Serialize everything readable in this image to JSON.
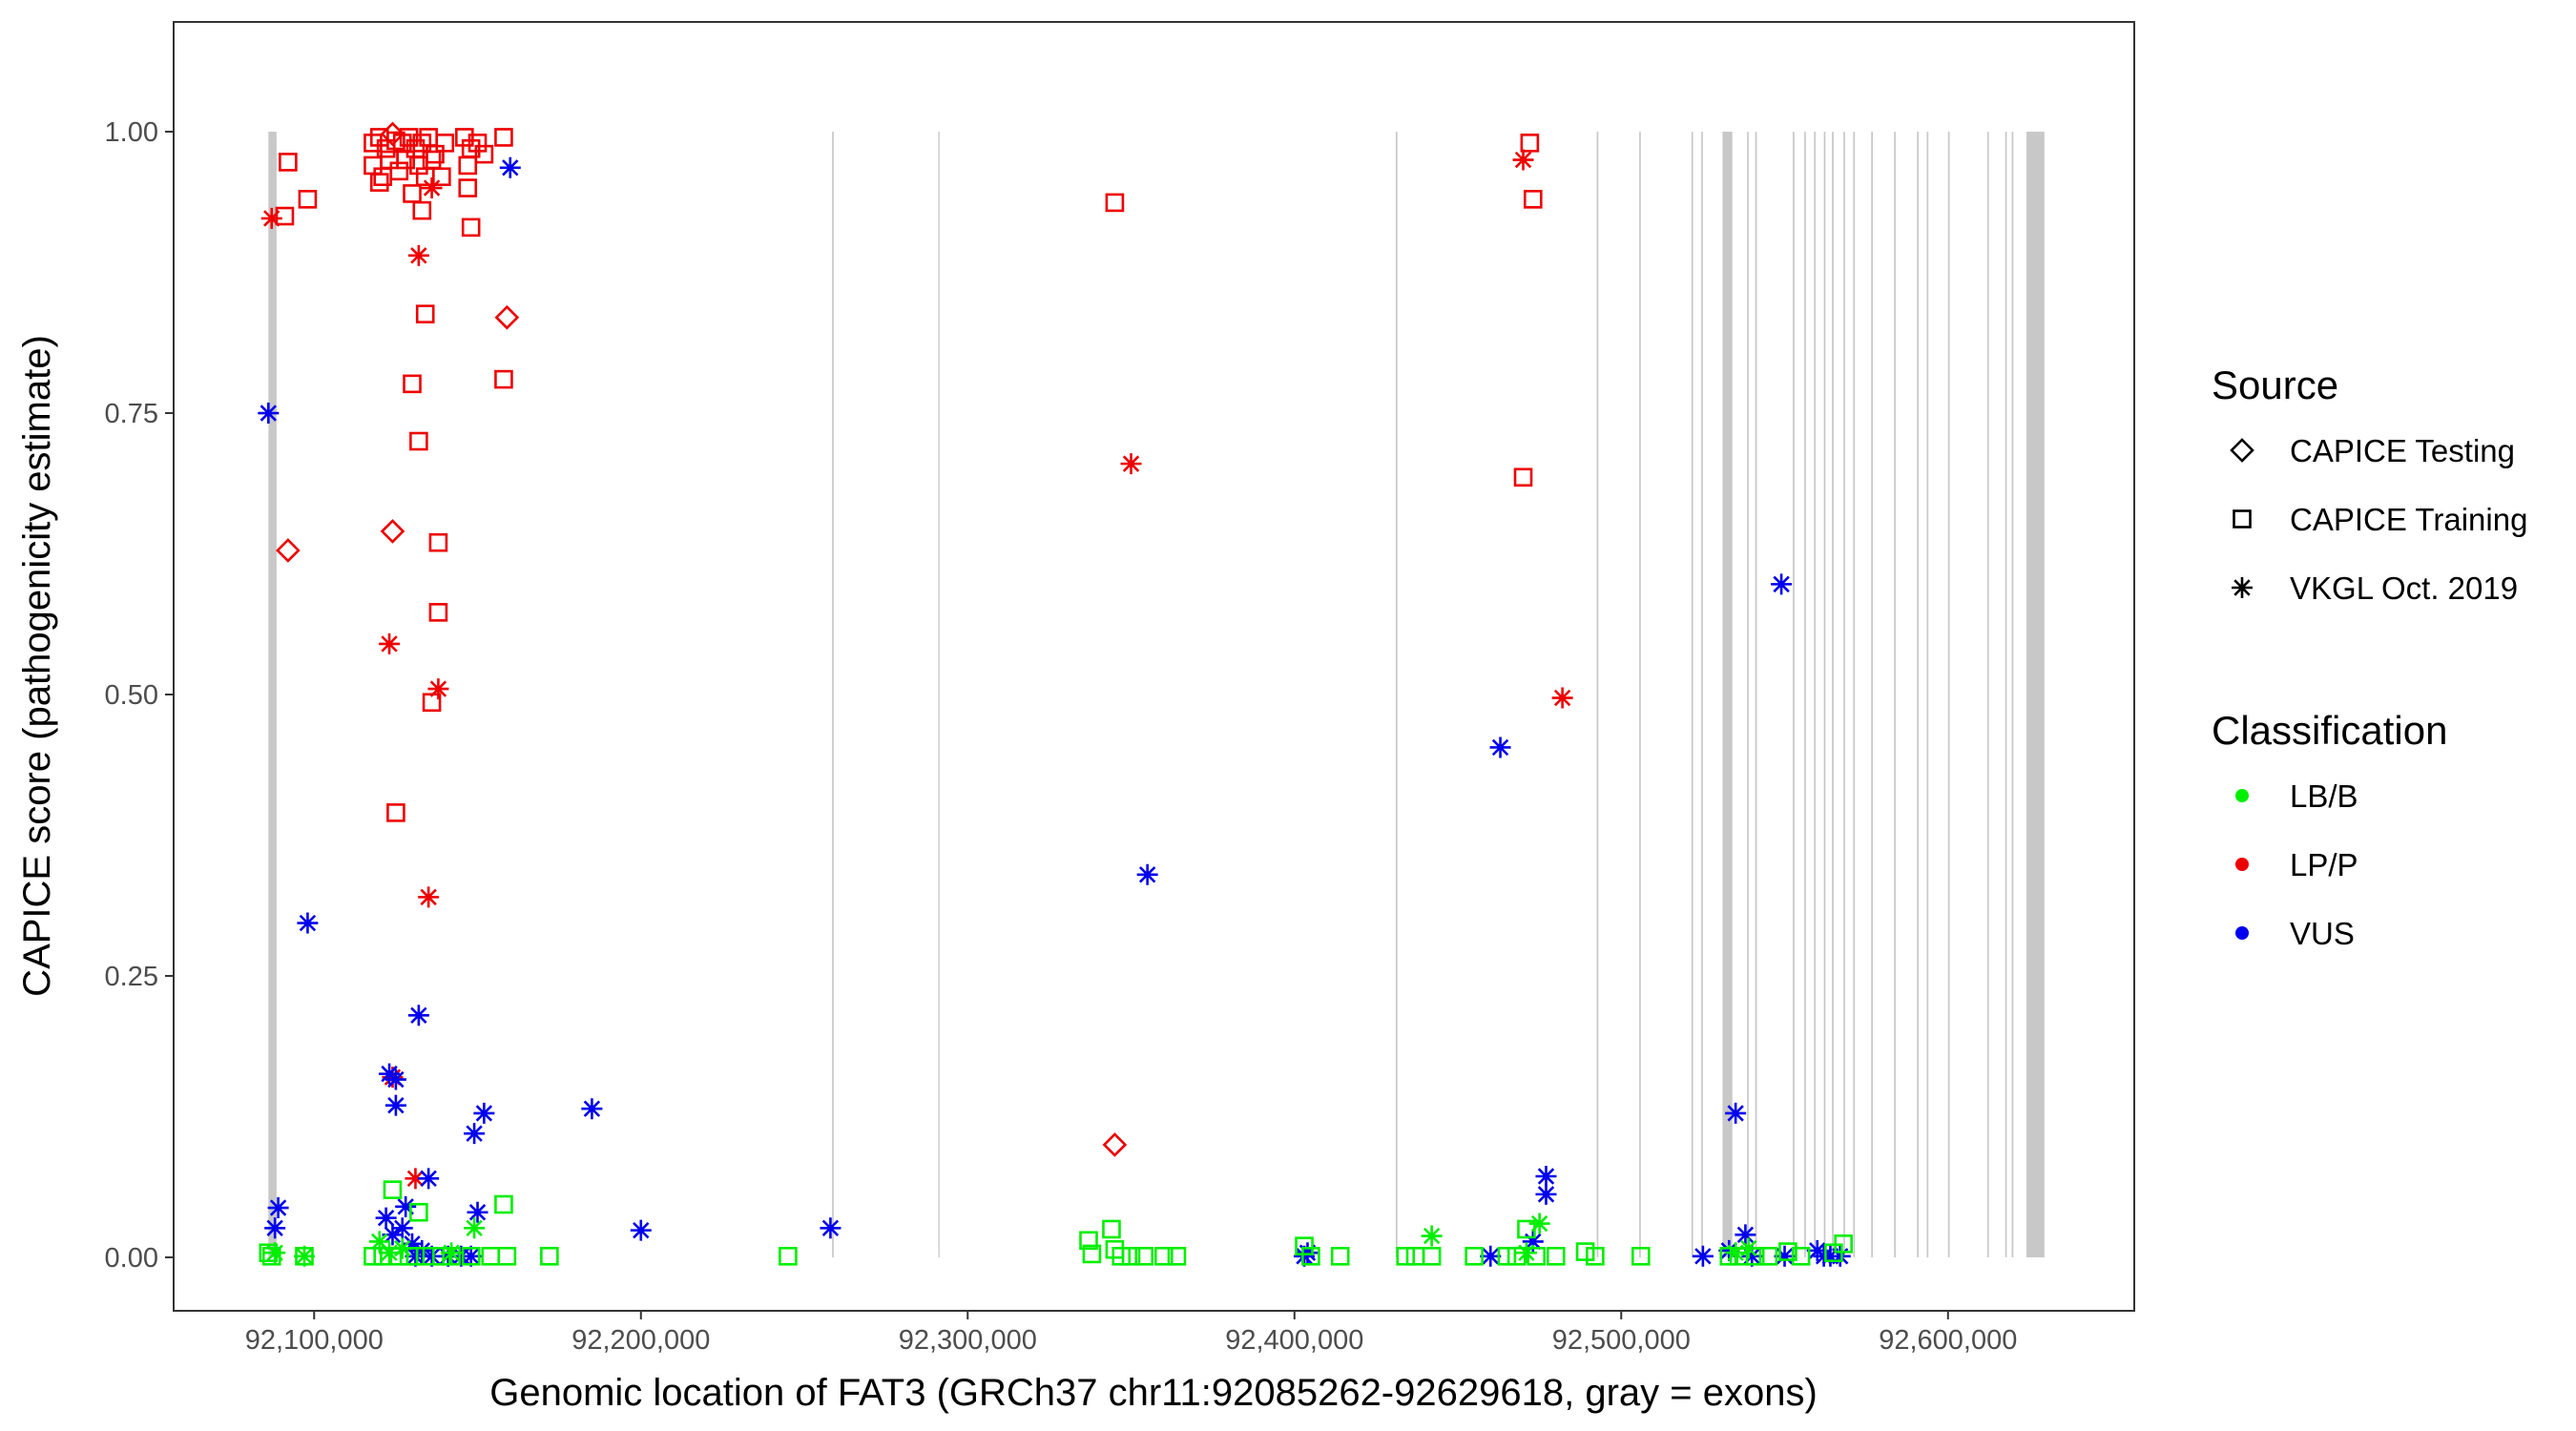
{
  "chart_data": {
    "type": "scatter",
    "title": "",
    "xlabel": "Genomic location of FAT3 (GRCh37 chr11:92085262-92629618, gray = exons)",
    "ylabel": "CAPICE score (pathogenicity estimate)",
    "xlim": [
      92057000,
      92657000
    ],
    "ylim": [
      -0.0475,
      1.0975
    ],
    "x_ticks": [
      92100000,
      92200000,
      92300000,
      92400000,
      92500000,
      92600000
    ],
    "x_tick_labels": [
      "92,100,000",
      "92,200,000",
      "92,300,000",
      "92,400,000",
      "92,500,000",
      "92,600,000"
    ],
    "y_ticks": [
      0,
      0.25,
      0.5,
      0.75,
      1.0
    ],
    "y_tick_labels": [
      "0.00",
      "0.25",
      "0.50",
      "0.75",
      "1.00"
    ],
    "grid": false,
    "exon_color": "#c8c8c8",
    "exons": [
      [
        92086000,
        92088500
      ],
      [
        92258500,
        92259000
      ],
      [
        92291000,
        92291400
      ],
      [
        92431000,
        92431500
      ],
      [
        92492500,
        92493000
      ],
      [
        92505500,
        92506000
      ],
      [
        92521500,
        92522000
      ],
      [
        92524500,
        92525000
      ],
      [
        92531000,
        92534000
      ],
      [
        92538500,
        92539000
      ],
      [
        92541000,
        92541500
      ],
      [
        92552500,
        92553000
      ],
      [
        92556000,
        92556500
      ],
      [
        92559000,
        92559500
      ],
      [
        92562000,
        92562500
      ],
      [
        92564500,
        92565000
      ],
      [
        92568000,
        92568500
      ],
      [
        92571000,
        92571500
      ],
      [
        92576500,
        92577000
      ],
      [
        92583500,
        92584000
      ],
      [
        92590500,
        92591000
      ],
      [
        92593500,
        92594000
      ],
      [
        92600000,
        92600500
      ],
      [
        92612000,
        92612500
      ],
      [
        92617500,
        92618000
      ],
      [
        92619500,
        92620000
      ],
      [
        92624000,
        92629500
      ]
    ],
    "colors": {
      "LB/B": "#00ee00",
      "LP/P": "#ee0000",
      "VUS": "#0000ee"
    },
    "legend": {
      "position": "right",
      "source_title": "Source",
      "source_items": [
        {
          "label": "CAPICE Testing",
          "shape": "diamond"
        },
        {
          "label": "CAPICE Training",
          "shape": "square"
        },
        {
          "label": "VKGL Oct. 2019",
          "shape": "asterisk"
        }
      ],
      "class_title": "Classification",
      "class_items": [
        {
          "label": "LB/B",
          "key": "LB/B"
        },
        {
          "label": "LP/P",
          "key": "LP/P"
        },
        {
          "label": "VUS",
          "key": "VUS"
        }
      ]
    },
    "series": [
      {
        "name": "CAPICE Testing / LP/P",
        "source": "CAPICE Testing",
        "class": "LP/P",
        "points": [
          [
            92124000,
            0.998
          ],
          [
            92159000,
            0.835
          ],
          [
            92092000,
            0.628
          ],
          [
            92124000,
            0.645
          ],
          [
            92345000,
            0.1
          ]
        ]
      },
      {
        "name": "CAPICE Training / LP/P",
        "source": "CAPICE Training",
        "class": "LP/P",
        "points": [
          [
            92118000,
            0.99
          ],
          [
            92120000,
            0.995
          ],
          [
            92122000,
            0.985
          ],
          [
            92125000,
            0.992
          ],
          [
            92127000,
            0.99
          ],
          [
            92129000,
            0.995
          ],
          [
            92131000,
            0.985
          ],
          [
            92133000,
            0.99
          ],
          [
            92135000,
            0.995
          ],
          [
            92137000,
            0.98
          ],
          [
            92140000,
            0.99
          ],
          [
            92146000,
            0.995
          ],
          [
            92148000,
            0.985
          ],
          [
            92150000,
            0.99
          ],
          [
            92158000,
            0.995
          ],
          [
            92118000,
            0.97
          ],
          [
            92121000,
            0.96
          ],
          [
            92123000,
            0.975
          ],
          [
            92126000,
            0.965
          ],
          [
            92128000,
            0.975
          ],
          [
            92132000,
            0.97
          ],
          [
            92134000,
            0.96
          ],
          [
            92136000,
            0.975
          ],
          [
            92139000,
            0.96
          ],
          [
            92147000,
            0.97
          ],
          [
            92152000,
            0.98
          ],
          [
            92130000,
            0.945
          ],
          [
            92147000,
            0.95
          ],
          [
            92120000,
            0.955
          ],
          [
            92092000,
            0.973
          ],
          [
            92091000,
            0.925
          ],
          [
            92098000,
            0.94
          ],
          [
            92133000,
            0.93
          ],
          [
            92148000,
            0.915
          ],
          [
            92134000,
            0.838
          ],
          [
            92158000,
            0.78
          ],
          [
            92130000,
            0.776
          ],
          [
            92132000,
            0.725
          ],
          [
            92138000,
            0.635
          ],
          [
            92138000,
            0.573
          ],
          [
            92136000,
            0.493
          ],
          [
            92125000,
            0.395
          ],
          [
            92345000,
            0.937
          ],
          [
            92472000,
            0.99
          ],
          [
            92473000,
            0.94
          ],
          [
            92470000,
            0.693
          ]
        ]
      },
      {
        "name": "VKGL Oct. 2019 / LP/P",
        "source": "VKGL Oct. 2019",
        "class": "LP/P",
        "points": [
          [
            92087000,
            0.923
          ],
          [
            92132000,
            0.89
          ],
          [
            92136000,
            0.95
          ],
          [
            92123000,
            0.545
          ],
          [
            92138000,
            0.505
          ],
          [
            92135000,
            0.32
          ],
          [
            92124000,
            0.16
          ],
          [
            92131000,
            0.07
          ],
          [
            92350000,
            0.705
          ],
          [
            92470000,
            0.975
          ],
          [
            92482000,
            0.497
          ]
        ]
      },
      {
        "name": "VKGL Oct. 2019 / VUS",
        "source": "VKGL Oct. 2019",
        "class": "VUS",
        "points": [
          [
            92086000,
            0.75
          ],
          [
            92160000,
            0.968
          ],
          [
            92098000,
            0.297
          ],
          [
            92132000,
            0.215
          ],
          [
            92123000,
            0.163
          ],
          [
            92125000,
            0.158
          ],
          [
            92125000,
            0.135
          ],
          [
            92152000,
            0.128
          ],
          [
            92149000,
            0.11
          ],
          [
            92185000,
            0.132
          ],
          [
            92135000,
            0.07
          ],
          [
            92089000,
            0.044
          ],
          [
            92088000,
            0.026
          ],
          [
            92122000,
            0.035
          ],
          [
            92128000,
            0.045
          ],
          [
            92130000,
            0.012
          ],
          [
            92150000,
            0.04
          ],
          [
            92124000,
            0.02
          ],
          [
            92127000,
            0.026
          ],
          [
            92133000,
            0.006
          ],
          [
            92200000,
            0.024
          ],
          [
            92258000,
            0.026
          ],
          [
            92355000,
            0.34
          ],
          [
            92463000,
            0.453
          ],
          [
            92477000,
            0.072
          ],
          [
            92477000,
            0.056
          ],
          [
            92473000,
            0.014
          ],
          [
            92404000,
            0.004
          ],
          [
            92403000,
            0.001
          ],
          [
            92460000,
            0.001
          ],
          [
            92549000,
            0.598
          ],
          [
            92535000,
            0.128
          ],
          [
            92538000,
            0.02
          ],
          [
            92533000,
            0.006
          ],
          [
            92525000,
            0.001
          ],
          [
            92540000,
            0.001
          ],
          [
            92550000,
            0.001
          ],
          [
            92560000,
            0.006
          ],
          [
            92562000,
            0.001
          ],
          [
            92564000,
            0.001
          ],
          [
            92567000,
            0.001
          ],
          [
            92131000,
            0.001
          ],
          [
            92136000,
            0.001
          ],
          [
            92141000,
            0.001
          ],
          [
            92145000,
            0.001
          ],
          [
            92148000,
            0.001
          ]
        ]
      },
      {
        "name": "VKGL Oct. 2019 / LB/B",
        "source": "VKGL Oct. 2019",
        "class": "LB/B",
        "points": [
          [
            92088000,
            0.004
          ],
          [
            92097000,
            0.001
          ],
          [
            92120000,
            0.014
          ],
          [
            92123000,
            0.004
          ],
          [
            92127000,
            0.008
          ],
          [
            92142000,
            0.004
          ],
          [
            92149000,
            0.026
          ],
          [
            92442000,
            0.019
          ],
          [
            92475000,
            0.03
          ],
          [
            92471000,
            0.004
          ],
          [
            92535000,
            0.004
          ],
          [
            92539000,
            0.008
          ]
        ]
      },
      {
        "name": "CAPICE Training / LB/B",
        "source": "CAPICE Training",
        "class": "LB/B",
        "points": [
          [
            92086000,
            0.004
          ],
          [
            92087000,
            0.001
          ],
          [
            92097000,
            0.001
          ],
          [
            92118000,
            0.001
          ],
          [
            92121000,
            0.001
          ],
          [
            92124000,
            0.06
          ],
          [
            92126000,
            0.001
          ],
          [
            92129000,
            0.001
          ],
          [
            92131000,
            0.001
          ],
          [
            92132000,
            0.04
          ],
          [
            92134000,
            0.001
          ],
          [
            92139000,
            0.001
          ],
          [
            92142000,
            0.001
          ],
          [
            92148000,
            0.001
          ],
          [
            92154000,
            0.001
          ],
          [
            92158000,
            0.047
          ],
          [
            92159000,
            0.001
          ],
          [
            92172000,
            0.001
          ],
          [
            92245000,
            0.001
          ],
          [
            92337000,
            0.015
          ],
          [
            92338000,
            0.003
          ],
          [
            92344000,
            0.025
          ],
          [
            92345000,
            0.007
          ],
          [
            92347000,
            0.001
          ],
          [
            92350000,
            0.001
          ],
          [
            92354000,
            0.001
          ],
          [
            92360000,
            0.001
          ],
          [
            92364000,
            0.001
          ],
          [
            92403000,
            0.01
          ],
          [
            92405000,
            0.001
          ],
          [
            92414000,
            0.001
          ],
          [
            92434000,
            0.001
          ],
          [
            92437000,
            0.001
          ],
          [
            92442000,
            0.001
          ],
          [
            92455000,
            0.001
          ],
          [
            92465000,
            0.001
          ],
          [
            92468000,
            0.001
          ],
          [
            92471000,
            0.025
          ],
          [
            92474000,
            0.001
          ],
          [
            92480000,
            0.001
          ],
          [
            92489000,
            0.005
          ],
          [
            92492000,
            0.001
          ],
          [
            92506000,
            0.001
          ],
          [
            92533000,
            0.001
          ],
          [
            92536000,
            0.001
          ],
          [
            92541000,
            0.001
          ],
          [
            92545000,
            0.001
          ],
          [
            92551000,
            0.005
          ],
          [
            92555000,
            0.001
          ],
          [
            92565000,
            0.004
          ],
          [
            92568000,
            0.012
          ]
        ]
      }
    ]
  }
}
